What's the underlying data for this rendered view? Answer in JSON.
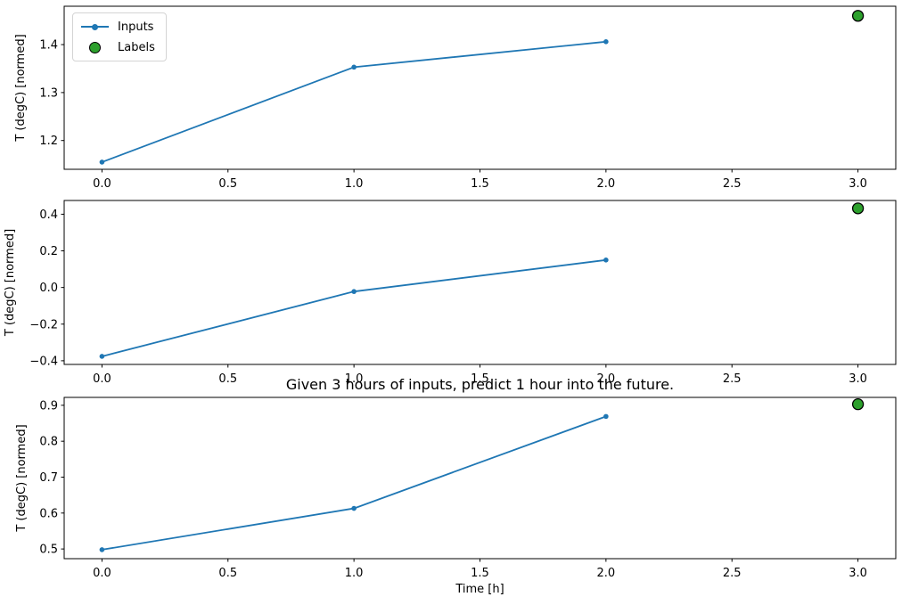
{
  "figure": {
    "background": "#ffffff",
    "annotation": "Given 3 hours of inputs, predict 1 hour into the future.",
    "legend": {
      "items": [
        {
          "label": "Inputs",
          "marker": "line-dot-icon",
          "color": "#1f77b4"
        },
        {
          "label": "Labels",
          "marker": "circle-icon",
          "color": "#2ca02c",
          "edge_color": "#000000"
        }
      ]
    },
    "colors": {
      "inputs_line": "#1f77b4",
      "labels_fill": "#2ca02c",
      "labels_edge": "#000000",
      "axis": "#000000",
      "text": "#000000"
    }
  },
  "chart_data": [
    {
      "type": "line",
      "title": "",
      "xlabel": "",
      "ylabel": "T (degC) [normed]",
      "series": [
        {
          "name": "Inputs",
          "type": "line",
          "x": [
            0.0,
            1.0,
            2.0
          ],
          "y": [
            1.155,
            1.353,
            1.406
          ]
        },
        {
          "name": "Labels",
          "type": "scatter",
          "x": [
            3.0
          ],
          "y": [
            1.46
          ]
        }
      ],
      "xlim": [
        -0.15,
        3.15
      ],
      "ylim": [
        1.14,
        1.48
      ],
      "xticks": [
        0.0,
        0.5,
        1.0,
        1.5,
        2.0,
        2.5,
        3.0
      ],
      "yticks": [
        1.2,
        1.3,
        1.4
      ],
      "grid": false,
      "legend_position": "upper left"
    },
    {
      "type": "line",
      "title": "",
      "xlabel": "",
      "ylabel": "T (degC) [normed]",
      "series": [
        {
          "name": "Inputs",
          "type": "line",
          "x": [
            0.0,
            1.0,
            2.0
          ],
          "y": [
            -0.376,
            -0.022,
            0.15
          ]
        },
        {
          "name": "Labels",
          "type": "scatter",
          "x": [
            3.0
          ],
          "y": [
            0.432
          ]
        }
      ],
      "xlim": [
        -0.15,
        3.15
      ],
      "ylim": [
        -0.42,
        0.475
      ],
      "xticks": [
        0.0,
        0.5,
        1.0,
        1.5,
        2.0,
        2.5,
        3.0
      ],
      "yticks": [
        -0.4,
        -0.2,
        0.0,
        0.2,
        0.4
      ],
      "grid": false,
      "legend_position": "none"
    },
    {
      "type": "line",
      "title": "Given 3 hours of inputs, predict 1 hour into the future.",
      "xlabel": "Time [h]",
      "ylabel": "T (degC) [normed]",
      "series": [
        {
          "name": "Inputs",
          "type": "line",
          "x": [
            0.0,
            1.0,
            2.0
          ],
          "y": [
            0.498,
            0.613,
            0.869
          ]
        },
        {
          "name": "Labels",
          "type": "scatter",
          "x": [
            3.0
          ],
          "y": [
            0.903
          ]
        }
      ],
      "xlim": [
        -0.15,
        3.15
      ],
      "ylim": [
        0.473,
        0.922
      ],
      "xticks": [
        0.0,
        0.5,
        1.0,
        1.5,
        2.0,
        2.5,
        3.0
      ],
      "yticks": [
        0.5,
        0.6,
        0.7,
        0.8,
        0.9
      ],
      "grid": false,
      "legend_position": "none"
    }
  ]
}
